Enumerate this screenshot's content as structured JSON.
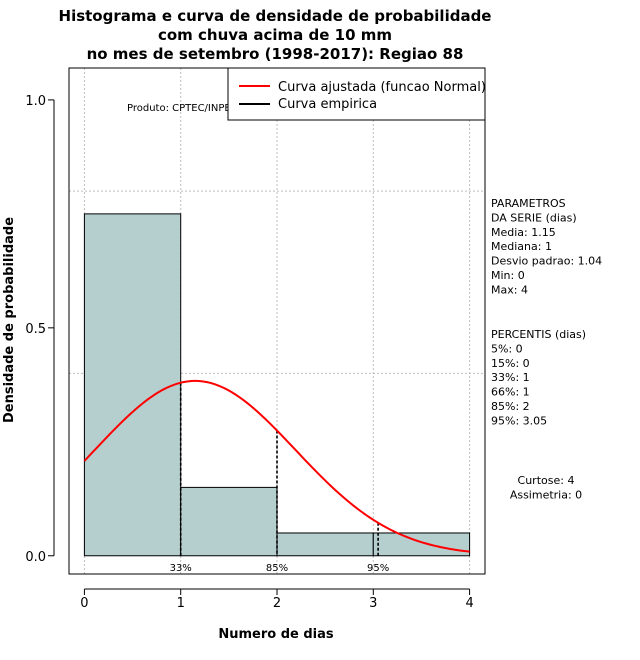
{
  "chart_data": {
    "type": "bar",
    "title_lines": [
      "Histograma e curva de densidade de probabilidade",
      "com chuva acima de 10 mm",
      "no mes de setembro (1998-2017): Regiao 88"
    ],
    "xlabel": "Numero de dias",
    "ylabel": "Densidade de probabilidade",
    "xlim": [
      -0.16,
      4.16
    ],
    "ylim": [
      -0.04,
      1.07
    ],
    "x_ticks": [
      0,
      1,
      2,
      3,
      4
    ],
    "x_tick_labels": [
      "0",
      "1",
      "2",
      "3",
      "4"
    ],
    "y_ticks": [
      0.0,
      0.5,
      1.0
    ],
    "y_tick_labels": [
      "0.0",
      "0.5",
      "1.0"
    ],
    "grid_x": [
      0,
      1,
      2,
      3,
      4
    ],
    "grid_y": [
      0.4,
      0.8
    ],
    "bins": [
      {
        "from": 0,
        "to": 1,
        "density": 0.75
      },
      {
        "from": 1,
        "to": 2,
        "density": 0.15
      },
      {
        "from": 2,
        "to": 3,
        "density": 0.05
      },
      {
        "from": 3,
        "to": 4,
        "density": 0.05
      }
    ],
    "bar_color": "#b5cece",
    "series": [
      {
        "name": "Curva ajustada (funcao Normal)",
        "color": "#ff0000",
        "distribution": "normal",
        "mean": 1.15,
        "sd": 1.04,
        "x_range": [
          0,
          4
        ]
      },
      {
        "name": "Curva empirica",
        "color": "#000000"
      }
    ],
    "percentile_markers": [
      {
        "x": 1,
        "label": "33%"
      },
      {
        "x": 2,
        "label": "85%"
      },
      {
        "x": 3.05,
        "label": "95%"
      }
    ],
    "legend_position": "top-right",
    "credit": "Produto: CPTEC/INPE"
  },
  "side_panel": {
    "params_lines": [
      "PARAMETROS",
      "DA SERIE (dias)",
      "  Media: 1.15",
      "  Mediana: 1",
      "  Desvio padrao: 1.04",
      "  Min: 0",
      "  Max: 4"
    ],
    "percentis_lines": [
      "PERCENTIS (dias)",
      "  5%: 0",
      "  15%: 0",
      "  33%: 1",
      "  66%: 1",
      "  85%: 2",
      "  95%: 3.05"
    ],
    "stats_lines": [
      "Curtose: 4",
      "Assimetria: 0"
    ]
  }
}
